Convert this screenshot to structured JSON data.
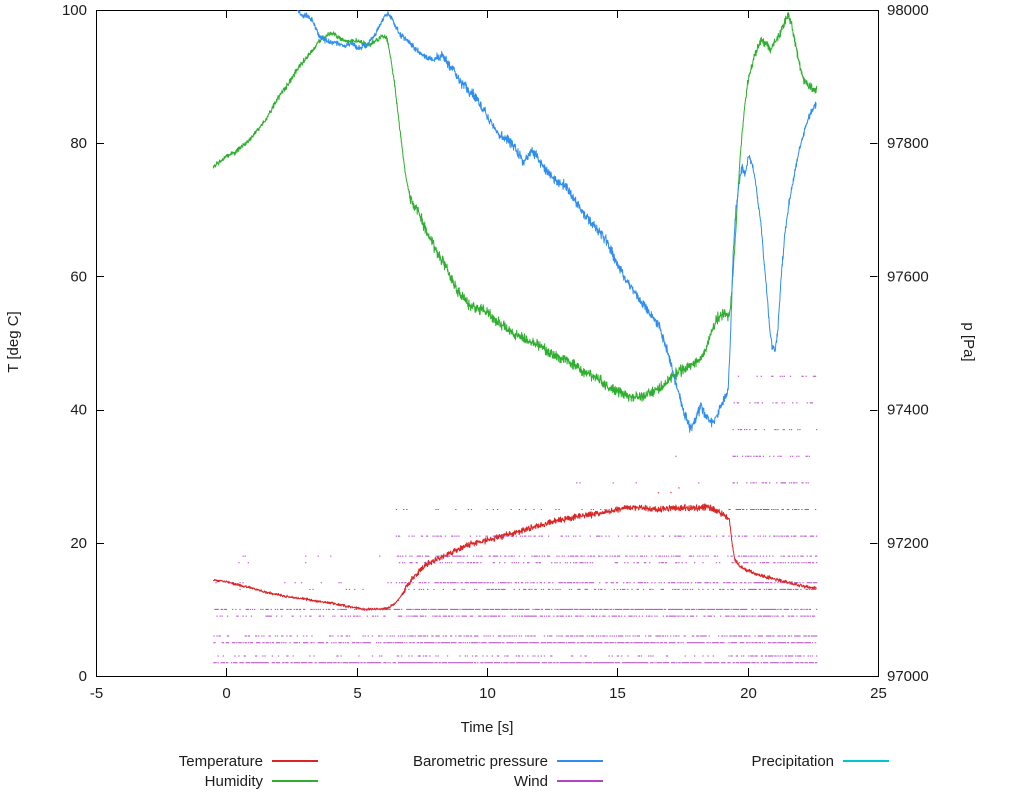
{
  "window": {
    "background": "#ffffff"
  },
  "chart_data": {
    "type": "line",
    "title": "",
    "xlabel": "Time [s]",
    "ylabel_left": "T [deg C]",
    "ylabel_right": "p [Pa]",
    "xlim": [
      -5,
      25
    ],
    "ylim_left": [
      0,
      100
    ],
    "ylim_right": [
      97000,
      98000
    ],
    "x_ticks": [
      -5,
      0,
      5,
      10,
      15,
      20,
      25
    ],
    "y_left_ticks": [
      0,
      20,
      40,
      60,
      80,
      100
    ],
    "y_right_ticks": [
      97000,
      97200,
      97400,
      97600,
      97800,
      98000
    ],
    "grid": false,
    "legend_position": "bottom",
    "colors": {
      "axis": "#000000",
      "text": "#1c1c1c"
    },
    "series": [
      {
        "name": "Temperature",
        "axis": "left",
        "color": "#da2525",
        "noise": 0.22,
        "noise_regions": [
          [
            6.8,
            19.25,
            0.55
          ],
          [
            19.4,
            22.65,
            0.3
          ]
        ],
        "outliers": {
          "x_range": [
            9.5,
            17.5
          ],
          "dy_min": 2,
          "dy_max": 6,
          "p": 0.01,
          "step": 0.03
        },
        "keypoints": [
          [
            -0.5,
            14.4
          ],
          [
            0,
            14.2
          ],
          [
            0.5,
            13.6
          ],
          [
            1,
            13.2
          ],
          [
            1.5,
            12.6
          ],
          [
            2,
            12.2
          ],
          [
            2.5,
            11.8
          ],
          [
            3,
            11.6
          ],
          [
            3.5,
            11.2
          ],
          [
            4,
            11
          ],
          [
            4.5,
            10.6
          ],
          [
            5,
            10.2
          ],
          [
            5.3,
            10
          ],
          [
            5.6,
            10.1
          ],
          [
            5.9,
            10
          ],
          [
            6.2,
            10.2
          ],
          [
            6.5,
            11
          ],
          [
            6.8,
            12.5
          ],
          [
            7.1,
            14.5
          ],
          [
            7.4,
            15.8
          ],
          [
            7.7,
            16.8
          ],
          [
            8,
            17.4
          ],
          [
            8.3,
            18
          ],
          [
            8.6,
            18.4
          ],
          [
            9,
            19.2
          ],
          [
            9.4,
            19.8
          ],
          [
            9.8,
            20.2
          ],
          [
            10.2,
            20.6
          ],
          [
            10.6,
            21
          ],
          [
            11,
            21.4
          ],
          [
            11.5,
            22
          ],
          [
            12,
            22.6
          ],
          [
            12.5,
            23.2
          ],
          [
            13,
            23.6
          ],
          [
            13.5,
            24
          ],
          [
            14,
            24.2
          ],
          [
            14.5,
            24.6
          ],
          [
            15,
            25
          ],
          [
            15.5,
            25.4
          ],
          [
            16,
            25.2
          ],
          [
            16.5,
            25
          ],
          [
            17,
            25.2
          ],
          [
            17.5,
            25.3
          ],
          [
            18,
            25.2
          ],
          [
            18.4,
            25.4
          ],
          [
            18.8,
            24.8
          ],
          [
            19.1,
            24.2
          ],
          [
            19.3,
            23.5
          ],
          [
            19.4,
            20
          ],
          [
            19.5,
            17.5
          ],
          [
            19.7,
            16.5
          ],
          [
            19.9,
            16
          ],
          [
            20.2,
            15.5
          ],
          [
            20.6,
            15
          ],
          [
            21,
            14.6
          ],
          [
            21.4,
            14.2
          ],
          [
            21.8,
            13.8
          ],
          [
            22.2,
            13.4
          ],
          [
            22.65,
            13.2
          ]
        ]
      },
      {
        "name": "Humidity",
        "axis": "left",
        "color": "#2fae2f",
        "noise": 0.45,
        "noise_regions": [
          [
            7,
            19.25,
            1.0
          ],
          [
            19.35,
            22.65,
            0.8
          ]
        ],
        "keypoints": [
          [
            -0.5,
            76.5
          ],
          [
            -0.3,
            77
          ],
          [
            0,
            78
          ],
          [
            0.3,
            78.5
          ],
          [
            0.6,
            79.5
          ],
          [
            0.9,
            80.5
          ],
          [
            1.2,
            82
          ],
          [
            1.5,
            83.5
          ],
          [
            1.8,
            85.5
          ],
          [
            2.1,
            87.5
          ],
          [
            2.4,
            89
          ],
          [
            2.7,
            91
          ],
          [
            3,
            92.5
          ],
          [
            3.3,
            94
          ],
          [
            3.6,
            95.5
          ],
          [
            3.9,
            96.3
          ],
          [
            4.1,
            96.5
          ],
          [
            4.3,
            95.8
          ],
          [
            4.6,
            95.2
          ],
          [
            4.9,
            95.5
          ],
          [
            5.2,
            95.2
          ],
          [
            5.5,
            94.8
          ],
          [
            5.8,
            95.5
          ],
          [
            6,
            96.2
          ],
          [
            6.15,
            95.8
          ],
          [
            6.3,
            93
          ],
          [
            6.45,
            89
          ],
          [
            6.6,
            84
          ],
          [
            6.75,
            79
          ],
          [
            6.9,
            74.5
          ],
          [
            7.05,
            72
          ],
          [
            7.2,
            70.5
          ],
          [
            7.35,
            70
          ],
          [
            7.5,
            68.5
          ],
          [
            7.7,
            66.5
          ],
          [
            7.9,
            65
          ],
          [
            8.1,
            63.5
          ],
          [
            8.4,
            61.5
          ],
          [
            8.7,
            59
          ],
          [
            9,
            57
          ],
          [
            9.3,
            55.8
          ],
          [
            9.6,
            55.2
          ],
          [
            9.9,
            54.8
          ],
          [
            10.2,
            54
          ],
          [
            10.5,
            52.8
          ],
          [
            10.8,
            52
          ],
          [
            11.1,
            51.2
          ],
          [
            11.4,
            50.6
          ],
          [
            11.7,
            50.2
          ],
          [
            12,
            49.6
          ],
          [
            12.3,
            48.8
          ],
          [
            12.6,
            48
          ],
          [
            12.9,
            47.8
          ],
          [
            13.2,
            47
          ],
          [
            13.5,
            46.2
          ],
          [
            13.8,
            45.6
          ],
          [
            14.1,
            45
          ],
          [
            14.4,
            44.2
          ],
          [
            14.7,
            43.4
          ],
          [
            15,
            42.8
          ],
          [
            15.3,
            42.2
          ],
          [
            15.6,
            41.8
          ],
          [
            15.9,
            42
          ],
          [
            16.2,
            42.4
          ],
          [
            16.5,
            43
          ],
          [
            16.8,
            43.8
          ],
          [
            17.1,
            45
          ],
          [
            17.4,
            45.8
          ],
          [
            17.7,
            46.4
          ],
          [
            18,
            47
          ],
          [
            18.2,
            47.6
          ],
          [
            18.4,
            49
          ],
          [
            18.6,
            51.5
          ],
          [
            18.8,
            53.5
          ],
          [
            19,
            54.3
          ],
          [
            19.15,
            54.5
          ],
          [
            19.3,
            54
          ],
          [
            19.4,
            58
          ],
          [
            19.5,
            64
          ],
          [
            19.6,
            71
          ],
          [
            19.7,
            77
          ],
          [
            19.8,
            82
          ],
          [
            19.9,
            86
          ],
          [
            20,
            89
          ],
          [
            20.15,
            91.5
          ],
          [
            20.3,
            93.5
          ],
          [
            20.5,
            95.5
          ],
          [
            20.7,
            95
          ],
          [
            20.9,
            94
          ],
          [
            21.1,
            95.5
          ],
          [
            21.3,
            97
          ],
          [
            21.45,
            98.5
          ],
          [
            21.55,
            99.3
          ],
          [
            21.7,
            97.5
          ],
          [
            21.85,
            94.5
          ],
          [
            22,
            91.5
          ],
          [
            22.15,
            89.5
          ],
          [
            22.3,
            88.8
          ],
          [
            22.5,
            88.2
          ],
          [
            22.65,
            88
          ]
        ]
      },
      {
        "name": "Barometric pressure",
        "axis": "right",
        "color": "#2e8ef0",
        "noise": 5,
        "noise_regions": [
          [
            8,
            19.25,
            9
          ],
          [
            19.3,
            22.65,
            7
          ]
        ],
        "keypoints": [
          [
            2.55,
            98015
          ],
          [
            2.7,
            98000
          ],
          [
            2.9,
            97990
          ],
          [
            3.1,
            97992
          ],
          [
            3.3,
            97985
          ],
          [
            3.6,
            97958
          ],
          [
            3.9,
            97952
          ],
          [
            4.2,
            97950
          ],
          [
            4.5,
            97946
          ],
          [
            4.8,
            97950
          ],
          [
            5.1,
            97942
          ],
          [
            5.4,
            97948
          ],
          [
            5.7,
            97962
          ],
          [
            5.9,
            97978
          ],
          [
            6.05,
            97990
          ],
          [
            6.2,
            97994
          ],
          [
            6.35,
            97988
          ],
          [
            6.5,
            97975
          ],
          [
            6.7,
            97962
          ],
          [
            7,
            97952
          ],
          [
            7.3,
            97940
          ],
          [
            7.6,
            97930
          ],
          [
            8,
            97926
          ],
          [
            8.3,
            97930
          ],
          [
            8.6,
            97916
          ],
          [
            9,
            97892
          ],
          [
            9.3,
            97880
          ],
          [
            9.6,
            97868
          ],
          [
            10,
            97842
          ],
          [
            10.3,
            97820
          ],
          [
            10.6,
            97808
          ],
          [
            10.9,
            97802
          ],
          [
            11.1,
            97792
          ],
          [
            11.4,
            97772
          ],
          [
            11.7,
            97788
          ],
          [
            12,
            97776
          ],
          [
            12.3,
            97758
          ],
          [
            12.6,
            97746
          ],
          [
            13,
            97736
          ],
          [
            13.4,
            97712
          ],
          [
            13.8,
            97692
          ],
          [
            14.2,
            97672
          ],
          [
            14.6,
            97652
          ],
          [
            15,
            97618
          ],
          [
            15.4,
            97592
          ],
          [
            15.8,
            97568
          ],
          [
            16.2,
            97548
          ],
          [
            16.6,
            97526
          ],
          [
            17,
            97478
          ],
          [
            17.3,
            97432
          ],
          [
            17.6,
            97390
          ],
          [
            17.8,
            97372
          ],
          [
            18,
            97386
          ],
          [
            18.2,
            97404
          ],
          [
            18.45,
            97386
          ],
          [
            18.7,
            97380
          ],
          [
            18.9,
            97398
          ],
          [
            19.1,
            97416
          ],
          [
            19.25,
            97428
          ],
          [
            19.35,
            97520
          ],
          [
            19.45,
            97640
          ],
          [
            19.55,
            97700
          ],
          [
            19.7,
            97748
          ],
          [
            19.8,
            97765
          ],
          [
            19.9,
            97752
          ],
          [
            20.05,
            97782
          ],
          [
            20.2,
            97765
          ],
          [
            20.35,
            97728
          ],
          [
            20.5,
            97680
          ],
          [
            20.7,
            97592
          ],
          [
            20.85,
            97522
          ],
          [
            20.95,
            97492
          ],
          [
            21.05,
            97488
          ],
          [
            21.15,
            97516
          ],
          [
            21.3,
            97608
          ],
          [
            21.45,
            97672
          ],
          [
            21.6,
            97714
          ],
          [
            21.8,
            97756
          ],
          [
            22,
            97792
          ],
          [
            22.2,
            97822
          ],
          [
            22.4,
            97846
          ],
          [
            22.65,
            97862
          ]
        ]
      },
      {
        "name": "Wind",
        "axis": "left",
        "color": "#b441c8",
        "kind": "scatter-levels",
        "x_range": [
          -0.5,
          22.65
        ],
        "region_bounds": [
          6.5,
          19.25
        ],
        "step": 0.04,
        "levels": [
          [
            2,
            0.75,
            0.85,
            0.8
          ],
          [
            3,
            0.15,
            0.22,
            0.5
          ],
          [
            5,
            0.6,
            0.8,
            0.7
          ],
          [
            6,
            0.3,
            0.5,
            0.6
          ],
          [
            9,
            0.28,
            0.55,
            0.6
          ],
          [
            10,
            0.45,
            0.8,
            0.7
          ],
          [
            13,
            0.04,
            0.3,
            0.55
          ],
          [
            14,
            0.05,
            0.55,
            0.6
          ],
          [
            17,
            0.01,
            0.28,
            0.5
          ],
          [
            18,
            0.01,
            0.45,
            0.55
          ],
          [
            21,
            0,
            0.28,
            0.5
          ],
          [
            25,
            0,
            0.1,
            0.45
          ],
          [
            29,
            0,
            0.03,
            0.4
          ],
          [
            33,
            0,
            0.005,
            0.35
          ],
          [
            37,
            0,
            0,
            0.3
          ],
          [
            41,
            0,
            0,
            0.25
          ],
          [
            45,
            0,
            0,
            0.16
          ]
        ]
      },
      {
        "name": "Precipitation",
        "axis": "left",
        "color": "#00c5cd",
        "noise": 0,
        "keypoints": []
      }
    ],
    "legend": {
      "rows": [
        [
          "Temperature",
          "Barometric pressure",
          "Precipitation"
        ],
        [
          "Humidity",
          "Wind"
        ]
      ]
    }
  }
}
